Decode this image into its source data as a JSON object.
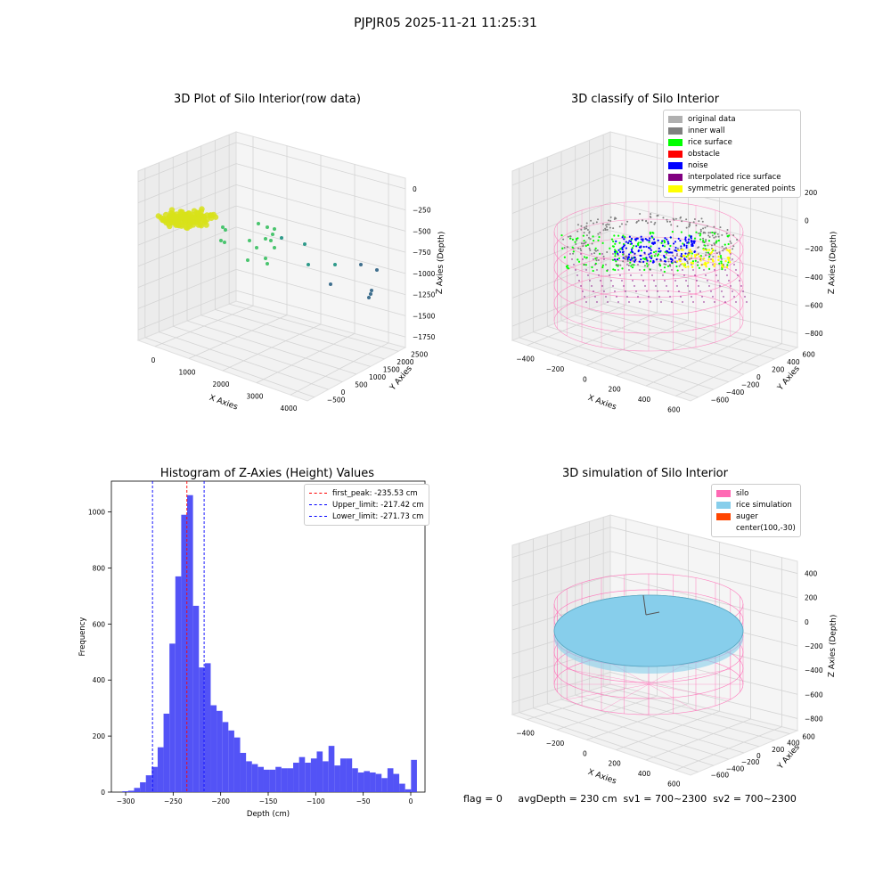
{
  "suptitle": "PJPJR05 2025-11-21 11:25:31",
  "footer": "flag = 0     avgDepth = 230 cm  sv1 = 700~2300  sv2 = 700~2300",
  "colors": {
    "rice_yellow": "#d8e21a",
    "noise_blue": "#0000ff",
    "rice_green": "#00ff00",
    "wall_gray": "#808080",
    "silo_pink": "#ff69b4",
    "rice_sim": "#87ceeb",
    "hist_bar": "#4a4af5"
  },
  "chart_data": [
    {
      "type": "scatter",
      "title": "3D Plot of Silo Interior(row data)",
      "xlabel": "X Axies",
      "ylabel": "Y Axies",
      "zlabel": "Z Axies (Depth)",
      "x_ticks": [
        "0",
        "1000",
        "2000",
        "3000",
        "4000"
      ],
      "y_ticks": [
        "−500",
        "0",
        "500",
        "1000",
        "1500",
        "2000",
        "2500"
      ],
      "z_ticks": [
        "0",
        "−250",
        "−500",
        "−750",
        "−1000",
        "−1250",
        "−1500",
        "−1750"
      ]
    },
    {
      "type": "scatter",
      "title": "3D classify of Silo Interior",
      "xlabel": "X Axies",
      "ylabel": "Y Axies",
      "zlabel": "Z Axies (Depth)",
      "x_ticks": [
        "−400",
        "−200",
        "0",
        "200",
        "400",
        "600"
      ],
      "y_ticks": [
        "−600",
        "−400",
        "−200",
        "0",
        "200",
        "400",
        "600"
      ],
      "z_ticks": [
        "200",
        "0",
        "−200",
        "−400",
        "−600",
        "−800"
      ],
      "legend": [
        {
          "label": "original data",
          "color": "#b0b0b0"
        },
        {
          "label": "inner wall",
          "color": "#808080"
        },
        {
          "label": "rice surface",
          "color": "#00ff00"
        },
        {
          "label": "obstacle",
          "color": "#ff0000"
        },
        {
          "label": "noise",
          "color": "#0000ff"
        },
        {
          "label": "interpolated rice surface",
          "color": "#800080"
        },
        {
          "label": "symmetric generated points",
          "color": "#ffff00"
        }
      ]
    },
    {
      "type": "bar",
      "title": "Histogram of Z-Axies (Height) Values",
      "xlabel": "Depth (cm)",
      "ylabel": "Frequency",
      "xlim": [
        -315,
        15
      ],
      "ylim": [
        0,
        1110
      ],
      "x_ticks": [
        -300,
        -250,
        -200,
        -150,
        -100,
        -50,
        0
      ],
      "y_ticks": [
        0,
        200,
        400,
        600,
        800,
        1000
      ],
      "bin_start": -303.5,
      "bin_width": 6.2,
      "values": [
        3,
        5,
        15,
        35,
        60,
        90,
        160,
        280,
        530,
        770,
        990,
        1060,
        665,
        445,
        460,
        310,
        290,
        250,
        220,
        195,
        140,
        110,
        100,
        90,
        80,
        80,
        90,
        85,
        85,
        105,
        125,
        105,
        120,
        145,
        110,
        165,
        95,
        120,
        120,
        85,
        70,
        75,
        70,
        65,
        50,
        85,
        65,
        30,
        10,
        115
      ],
      "lines": [
        {
          "label": "first_peak: -235.53 cm",
          "x": -235.53,
          "color": "#ff0000"
        },
        {
          "label": "Upper_limit: -217.42 cm",
          "x": -217.42,
          "color": "#0000ff"
        },
        {
          "label": "Lower_limit: -271.73 cm",
          "x": -271.73,
          "color": "#0000ff"
        }
      ]
    },
    {
      "type": "scatter",
      "title": "3D simulation of Silo Interior",
      "xlabel": "X Axies",
      "ylabel": "Y Axies",
      "zlabel": "Z Axies (Depth)",
      "x_ticks": [
        "−400",
        "−200",
        "0",
        "200",
        "400",
        "600"
      ],
      "y_ticks": [
        "−600",
        "−400",
        "−200",
        "0",
        "200",
        "400",
        "600"
      ],
      "z_ticks": [
        "400",
        "200",
        "0",
        "−200",
        "−400",
        "−600",
        "−800"
      ],
      "legend": [
        {
          "label": "silo",
          "color": "#ff69b4"
        },
        {
          "label": "rice simulation",
          "color": "#87ceeb"
        },
        {
          "label": "auger",
          "color": "#ff4500"
        },
        {
          "label": "center(100,-30)",
          "color": ""
        }
      ]
    }
  ]
}
